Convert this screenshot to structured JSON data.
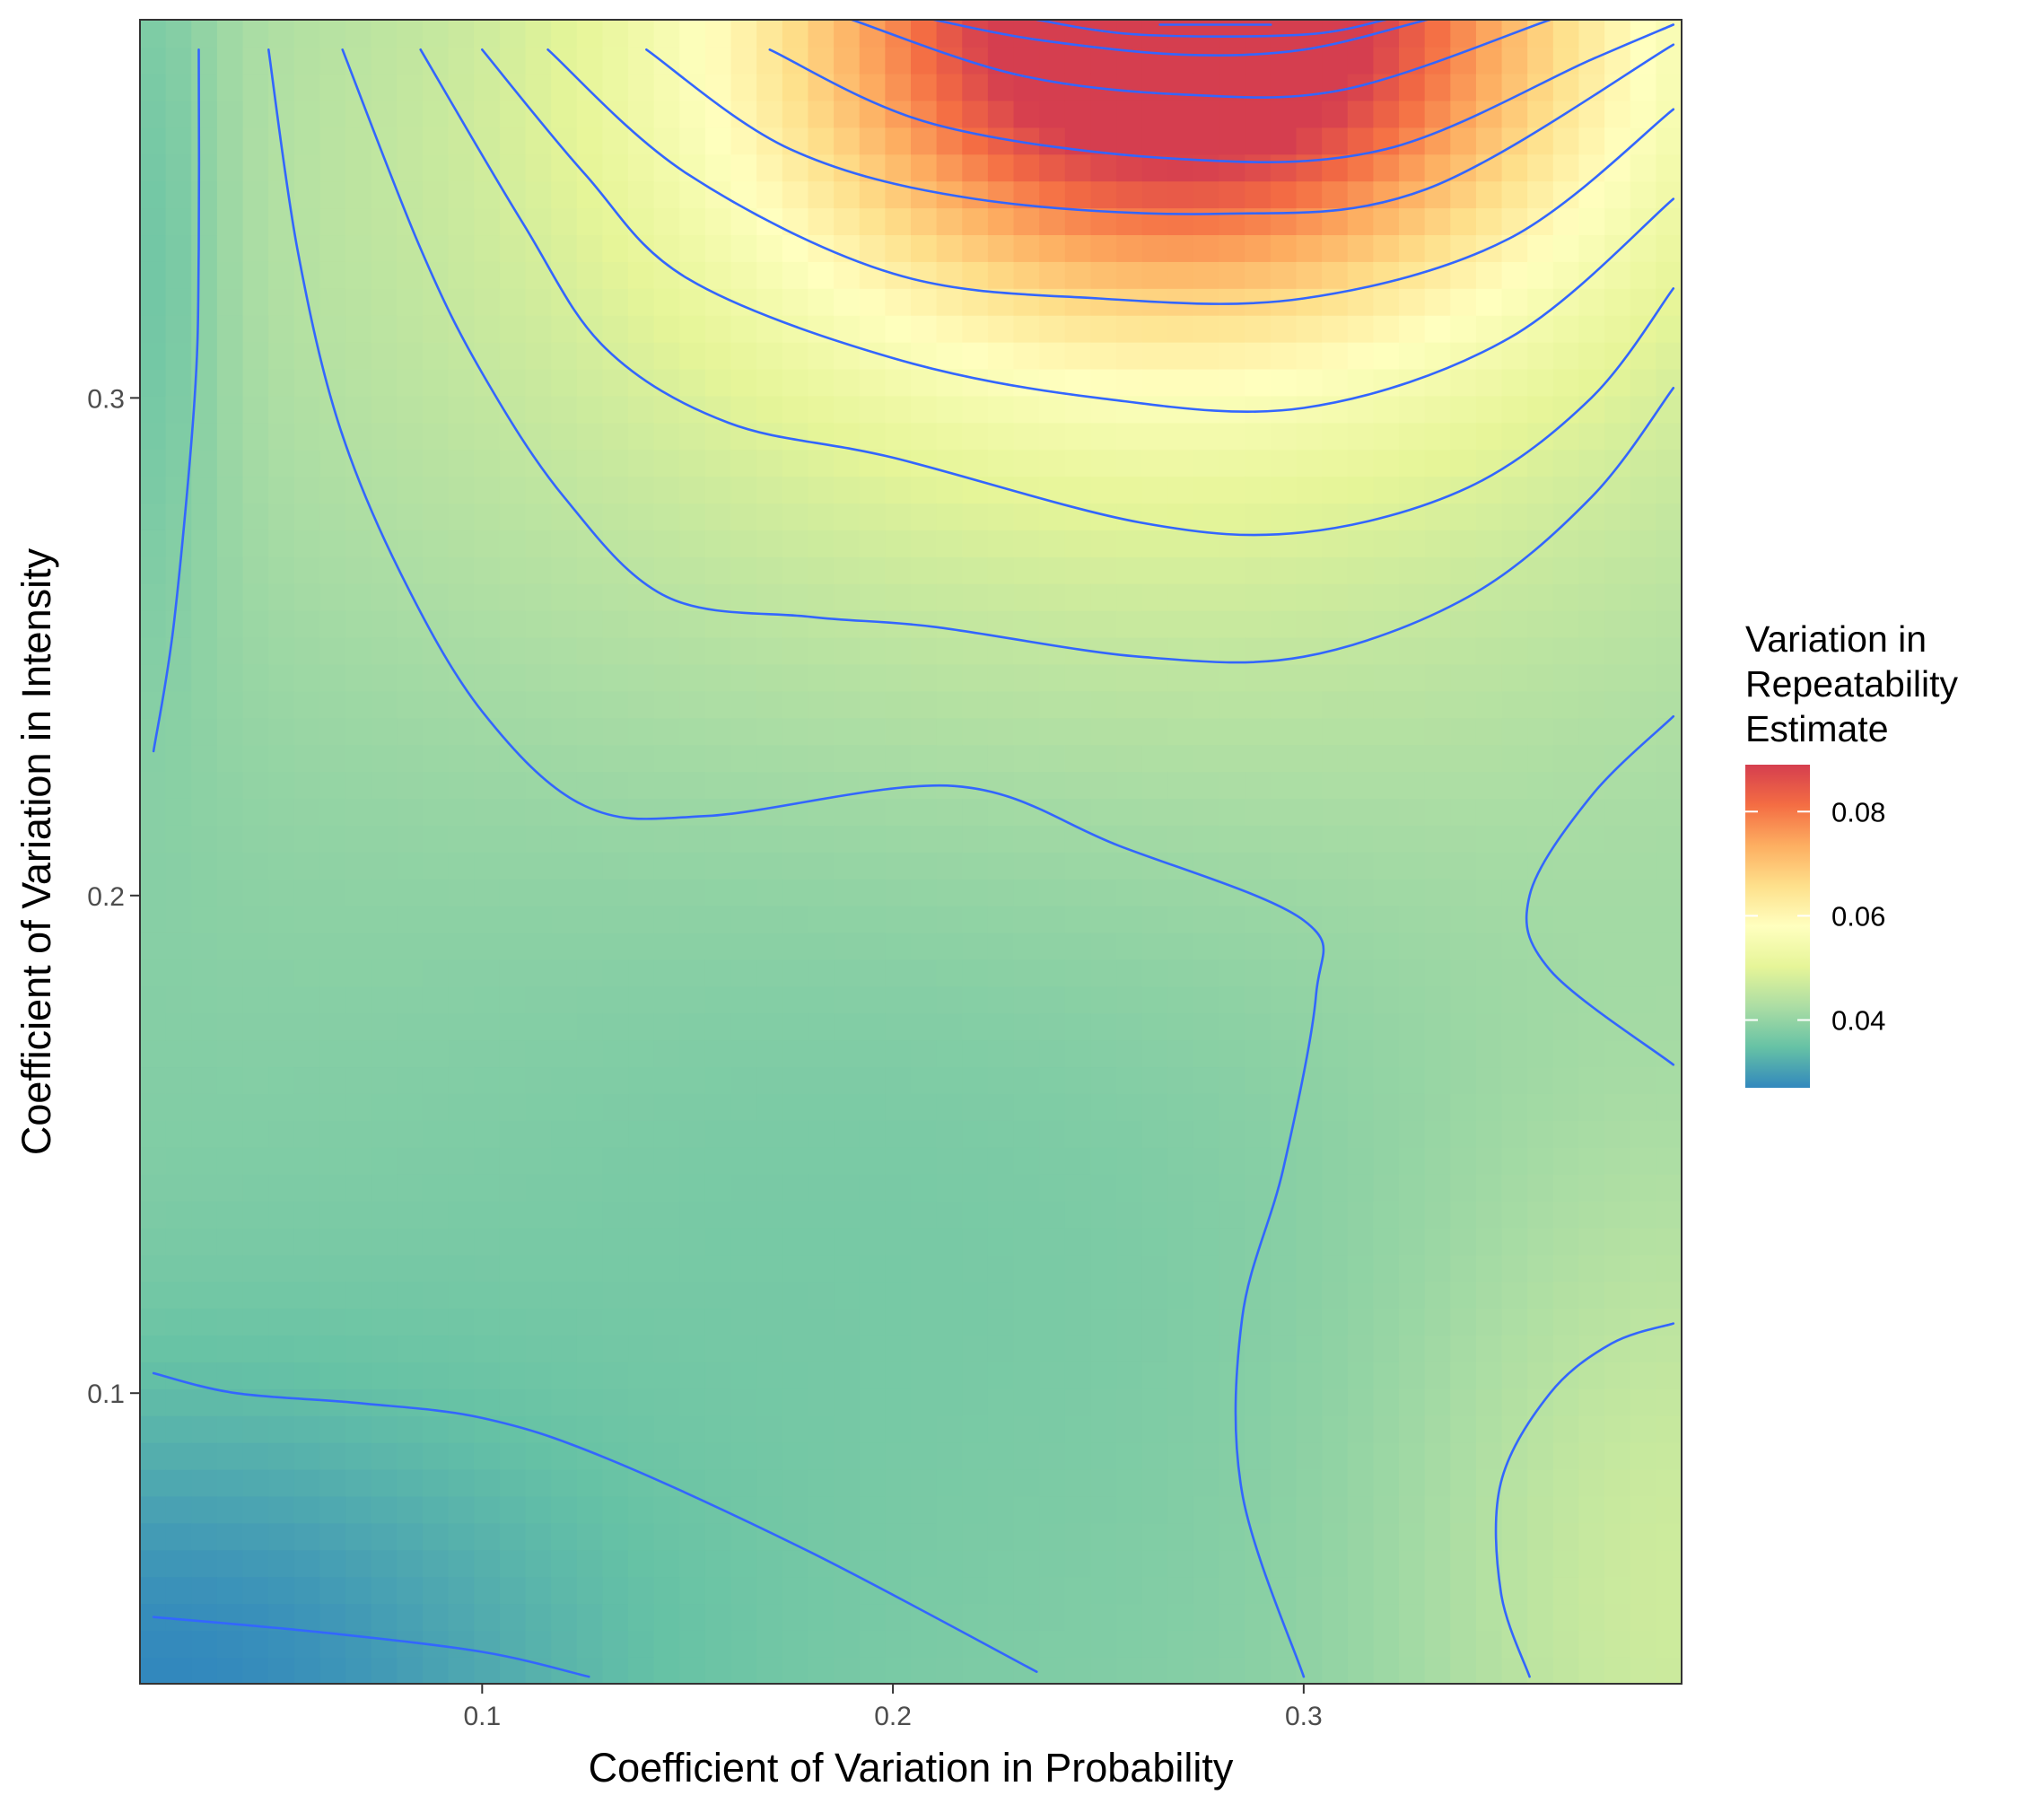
{
  "chart_data": {
    "type": "heatmap",
    "title": "",
    "xlabel": "Coefficient of Variation in Probability",
    "ylabel": "Coefficient of Variation in Intensity",
    "xlim": [
      0.0167,
      0.392
    ],
    "ylim": [
      0.0416,
      0.376
    ],
    "x_ticks": [
      0.1,
      0.2,
      0.3
    ],
    "y_ticks": [
      0.1,
      0.2,
      0.3
    ],
    "x_tick_labels": [
      "0.1",
      "0.2",
      "0.3"
    ],
    "y_tick_labels": [
      "0.1",
      "0.2",
      "0.3"
    ],
    "grid": false,
    "value_range": [
      0.027,
      0.089
    ],
    "legend": {
      "title_lines": [
        "Variation in",
        "Repeatability",
        "Estimate"
      ],
      "placement": "right",
      "breaks": [
        0.04,
        0.06,
        0.08
      ],
      "break_labels": [
        "0.04",
        "0.06",
        "0.08"
      ],
      "palette": [
        "#3288bd",
        "#66c2a5",
        "#abdda4",
        "#e6f598",
        "#ffffbf",
        "#fee08b",
        "#fdae61",
        "#f46d43",
        "#d53e4f"
      ]
    },
    "contour_color": "#3366ff",
    "contour_lines": [
      [
        [
          0.02,
          0.229
        ],
        [
          0.025,
          0.255
        ],
        [
          0.03,
          0.3
        ],
        [
          0.031,
          0.33
        ],
        [
          0.031,
          0.37
        ]
      ],
      [
        [
          0.02,
          0.104
        ],
        [
          0.04,
          0.1
        ],
        [
          0.07,
          0.098
        ],
        [
          0.1,
          0.095
        ],
        [
          0.13,
          0.087
        ],
        [
          0.18,
          0.068
        ],
        [
          0.235,
          0.044
        ]
      ],
      [
        [
          0.02,
          0.055
        ],
        [
          0.06,
          0.052
        ],
        [
          0.1,
          0.048
        ],
        [
          0.126,
          0.043
        ]
      ],
      [
        [
          0.048,
          0.37
        ],
        [
          0.055,
          0.33
        ],
        [
          0.065,
          0.295
        ],
        [
          0.08,
          0.265
        ],
        [
          0.1,
          0.237
        ],
        [
          0.125,
          0.218
        ],
        [
          0.155,
          0.216
        ],
        [
          0.215,
          0.222
        ],
        [
          0.255,
          0.21
        ],
        [
          0.3,
          0.195
        ],
        [
          0.303,
          0.18
        ],
        [
          0.295,
          0.145
        ],
        [
          0.285,
          0.115
        ],
        [
          0.285,
          0.08
        ],
        [
          0.3,
          0.043
        ]
      ],
      [
        [
          0.066,
          0.37
        ],
        [
          0.085,
          0.33
        ],
        [
          0.1,
          0.305
        ],
        [
          0.12,
          0.28
        ],
        [
          0.145,
          0.26
        ],
        [
          0.18,
          0.256
        ],
        [
          0.21,
          0.254
        ],
        [
          0.26,
          0.248
        ],
        [
          0.3,
          0.248
        ],
        [
          0.34,
          0.26
        ],
        [
          0.37,
          0.28
        ],
        [
          0.39,
          0.302
        ]
      ],
      [
        [
          0.085,
          0.37
        ],
        [
          0.11,
          0.335
        ],
        [
          0.13,
          0.31
        ],
        [
          0.16,
          0.295
        ],
        [
          0.2,
          0.288
        ],
        [
          0.26,
          0.275
        ],
        [
          0.3,
          0.273
        ],
        [
          0.34,
          0.282
        ],
        [
          0.37,
          0.3
        ],
        [
          0.39,
          0.322
        ]
      ],
      [
        [
          0.1,
          0.37
        ],
        [
          0.125,
          0.345
        ],
        [
          0.15,
          0.324
        ],
        [
          0.2,
          0.308
        ],
        [
          0.25,
          0.3
        ],
        [
          0.3,
          0.298
        ],
        [
          0.35,
          0.312
        ],
        [
          0.39,
          0.34
        ]
      ],
      [
        [
          0.116,
          0.37
        ],
        [
          0.15,
          0.345
        ],
        [
          0.2,
          0.325
        ],
        [
          0.25,
          0.32
        ],
        [
          0.3,
          0.32
        ],
        [
          0.35,
          0.332
        ],
        [
          0.39,
          0.358
        ]
      ],
      [
        [
          0.14,
          0.37
        ],
        [
          0.175,
          0.35
        ],
        [
          0.22,
          0.34
        ],
        [
          0.28,
          0.337
        ],
        [
          0.33,
          0.342
        ],
        [
          0.39,
          0.371
        ]
      ],
      [
        [
          0.17,
          0.37
        ],
        [
          0.21,
          0.355
        ],
        [
          0.27,
          0.348
        ],
        [
          0.32,
          0.35
        ],
        [
          0.37,
          0.368
        ],
        [
          0.39,
          0.375
        ]
      ],
      [
        [
          0.19,
          0.376
        ],
        [
          0.23,
          0.365
        ],
        [
          0.27,
          0.361
        ],
        [
          0.31,
          0.362
        ],
        [
          0.36,
          0.376
        ]
      ],
      [
        [
          0.21,
          0.376
        ],
        [
          0.235,
          0.372
        ],
        [
          0.27,
          0.369
        ],
        [
          0.3,
          0.37
        ],
        [
          0.33,
          0.376
        ]
      ],
      [
        [
          0.235,
          0.376
        ],
        [
          0.26,
          0.373
        ],
        [
          0.3,
          0.373
        ],
        [
          0.32,
          0.376
        ]
      ],
      [
        [
          0.265,
          0.375
        ],
        [
          0.28,
          0.375
        ],
        [
          0.292,
          0.375
        ]
      ],
      [
        [
          0.39,
          0.236
        ],
        [
          0.37,
          0.22
        ],
        [
          0.355,
          0.2
        ],
        [
          0.36,
          0.185
        ],
        [
          0.39,
          0.166
        ]
      ],
      [
        [
          0.39,
          0.114
        ],
        [
          0.375,
          0.11
        ],
        [
          0.36,
          0.1
        ],
        [
          0.348,
          0.082
        ],
        [
          0.348,
          0.06
        ],
        [
          0.355,
          0.043
        ]
      ]
    ]
  }
}
